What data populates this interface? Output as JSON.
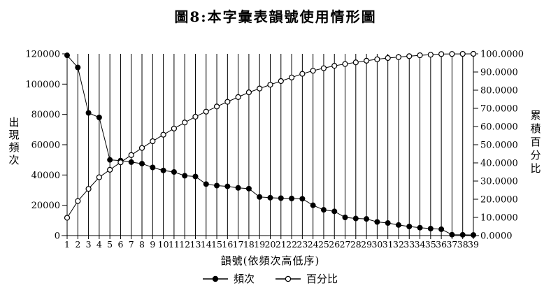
{
  "chart_data": {
    "type": "line",
    "title": "圖8:本字彙表韻號使用情形圖",
    "x_axis_label": "韻號(依頻次高低序)",
    "y_left_label": "出現頻次",
    "y_right_label": "累積百分比",
    "categories": [
      1,
      2,
      3,
      4,
      5,
      6,
      7,
      8,
      9,
      10,
      11,
      12,
      13,
      14,
      15,
      16,
      17,
      18,
      19,
      20,
      21,
      22,
      23,
      24,
      25,
      26,
      27,
      28,
      29,
      30,
      31,
      32,
      33,
      34,
      35,
      36,
      37,
      38,
      39
    ],
    "series": [
      {
        "name": "頻次",
        "axis": "left",
        "marker": "filled-circle",
        "values": [
          119000,
          111000,
          81000,
          78000,
          50000,
          49500,
          48500,
          47500,
          45000,
          43000,
          42000,
          39500,
          39000,
          34000,
          33000,
          32500,
          31500,
          31000,
          25500,
          25000,
          24700,
          24500,
          24300,
          20000,
          17000,
          16000,
          12000,
          11300,
          11000,
          9000,
          8300,
          7000,
          6000,
          5200,
          4600,
          4200,
          600,
          500,
          400
        ]
      },
      {
        "name": "百分比",
        "axis": "right",
        "marker": "open-circle",
        "values": [
          9.8,
          19.0,
          25.7,
          32.1,
          36.2,
          40.3,
          44.3,
          48.2,
          51.9,
          55.5,
          58.9,
          62.2,
          65.4,
          68.2,
          71.0,
          73.6,
          76.2,
          78.8,
          80.9,
          83.0,
          85.0,
          87.0,
          89.0,
          90.7,
          92.1,
          93.4,
          94.4,
          95.3,
          96.2,
          97.0,
          97.7,
          98.2,
          98.7,
          99.2,
          99.5,
          99.88,
          99.93,
          99.97,
          100.0
        ]
      }
    ],
    "y_left_range": [
      0,
      120000
    ],
    "y_right_range": [
      0,
      100
    ],
    "y_left_ticks": [
      "0",
      "20000",
      "40000",
      "60000",
      "80000",
      "100000",
      "120000"
    ],
    "y_right_ticks": [
      "0.0000",
      "10.0000",
      "20.0000",
      "30.0000",
      "40.0000",
      "50.0000",
      "60.0000",
      "70.0000",
      "80.0000",
      "90.0000",
      "100.0000"
    ],
    "grid": "vertical-only",
    "legend_position": "bottom-center",
    "colors": {
      "foreground": "#000000",
      "background": "#ffffff"
    }
  }
}
